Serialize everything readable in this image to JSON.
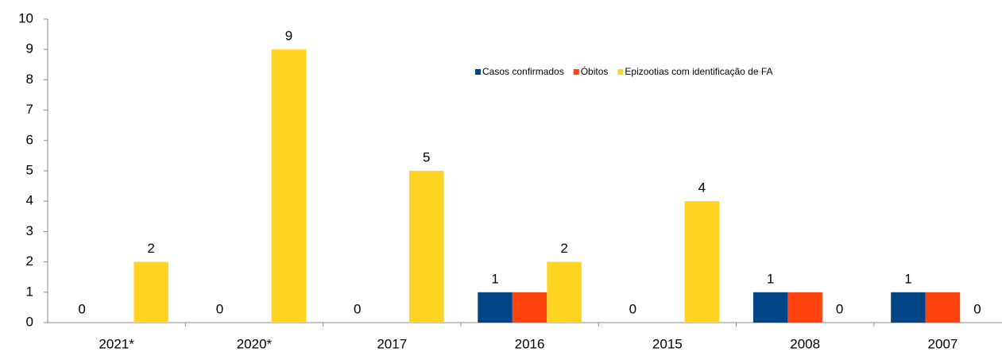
{
  "chart_data": {
    "type": "bar",
    "categories": [
      "2021*",
      "2020*",
      "2017",
      "2016",
      "2015",
      "2008",
      "2007"
    ],
    "series": [
      {
        "name": "Casos confirmados",
        "color": "#004586",
        "values": [
          0,
          0,
          0,
          1,
          0,
          1,
          1
        ],
        "data_labels": true
      },
      {
        "name": "Óbitos",
        "color": "#ff420e",
        "values": [
          0,
          0,
          0,
          1,
          0,
          1,
          1
        ],
        "data_labels": false
      },
      {
        "name": "Epizootias com identificação de FA",
        "color": "#ffd320",
        "values": [
          2,
          9,
          5,
          2,
          4,
          0,
          0
        ],
        "data_labels": true
      }
    ],
    "ylim": [
      0,
      10
    ],
    "yticks": [
      0,
      1,
      2,
      3,
      4,
      5,
      6,
      7,
      8,
      9,
      10
    ],
    "grid": false
  }
}
